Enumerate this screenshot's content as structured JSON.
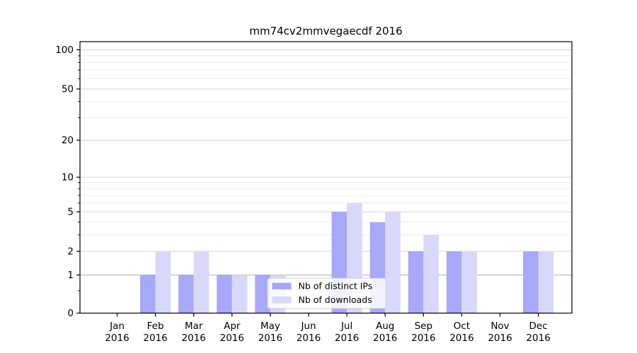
{
  "chart_data": {
    "type": "bar",
    "title": "mm74cv2mmvegaecdf 2016",
    "categories": [
      "Jan",
      "Feb",
      "Mar",
      "Apr",
      "May",
      "Jun",
      "Jul",
      "Aug",
      "Sep",
      "Oct",
      "Nov",
      "Dec"
    ],
    "category_year": "2016",
    "series": [
      {
        "name": "Nb of distinct IPs",
        "color": "#a8a8f8",
        "values": [
          0,
          1,
          1,
          1,
          1,
          0,
          5,
          4,
          2,
          2,
          0,
          2
        ]
      },
      {
        "name": "Nb of downloads",
        "color": "#d8d8fa",
        "values": [
          0,
          2,
          2,
          1,
          1,
          0,
          6,
          5,
          3,
          2,
          0,
          2
        ]
      }
    ],
    "yscale": "log1p",
    "ylim": [
      0,
      115
    ],
    "y_ticks": [
      0,
      1,
      2,
      5,
      10,
      20,
      50,
      100
    ],
    "y_minor_ticks": [
      0.5,
      3,
      4,
      6,
      7,
      8,
      9,
      30,
      40,
      60,
      70,
      80,
      90
    ],
    "grid": true,
    "legend": {
      "position": "lower center"
    },
    "colors": {
      "grid_major": "#d6d6d6",
      "grid_minor": "#ededed",
      "unit_gridline": "#b0b0b0",
      "axis": "#000000",
      "background": "#ffffff",
      "legend_border": "#cccccc",
      "legend_background": "#ffffff"
    }
  }
}
